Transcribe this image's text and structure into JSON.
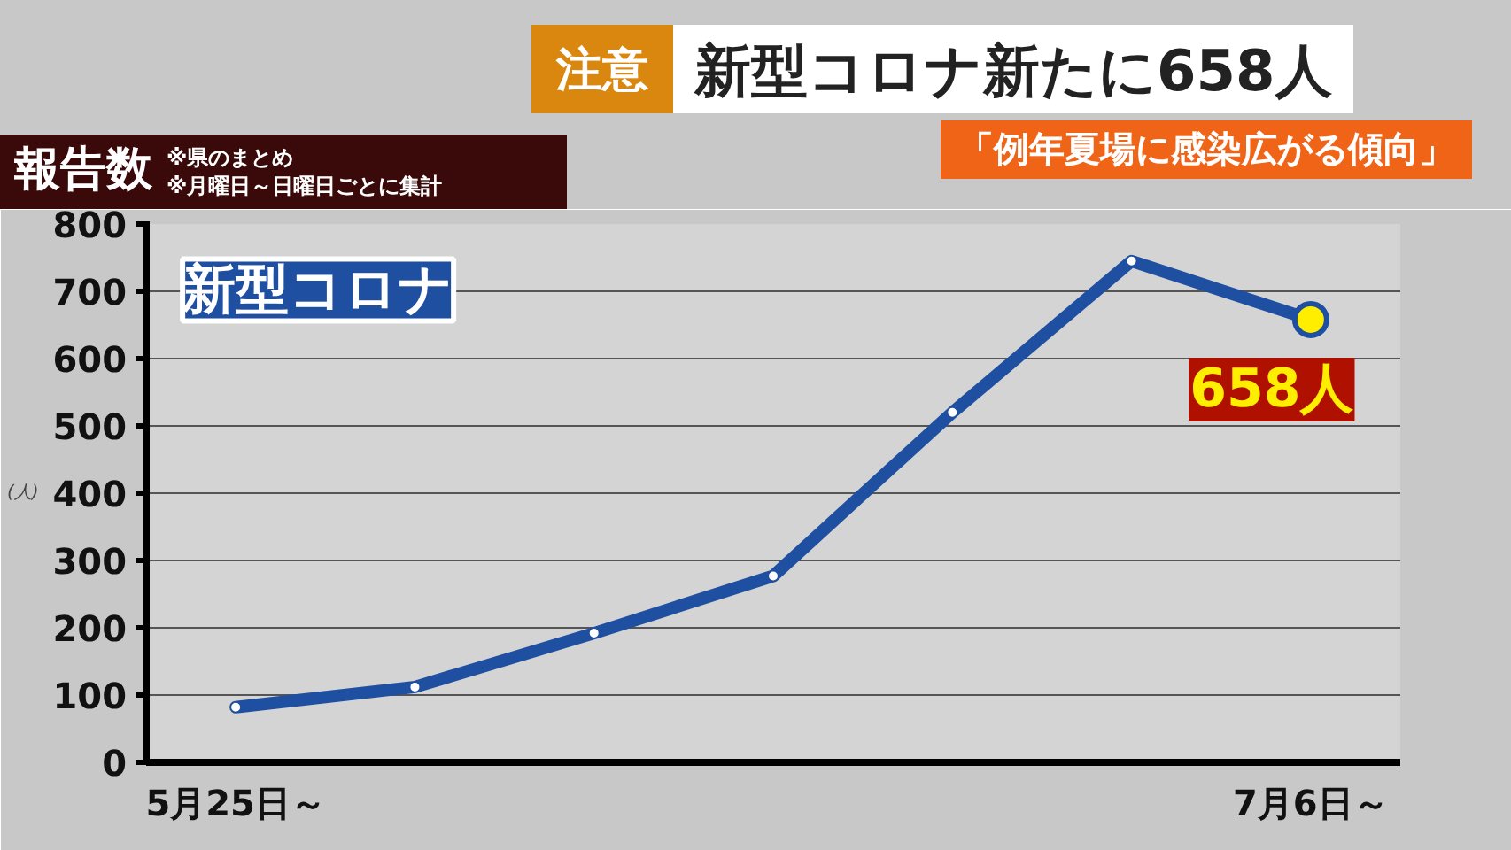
{
  "chart_data": {
    "type": "line",
    "title": "新型コロナ新たに658人",
    "subtitle": "「例年夏場に感染広がる傾向」",
    "annotations": [
      "注意",
      "報告数",
      "※県のまとめ",
      "※月曜日～日曜日ごとに集計"
    ],
    "ylabel": "(人)",
    "categories": [
      "5月25日～",
      null,
      null,
      null,
      null,
      null,
      "7月6日～"
    ],
    "series": [
      {
        "name": "新型コロナ",
        "color": "#1f4fa0",
        "values": [
          82,
          112,
          192,
          277,
          520,
          745,
          658
        ],
        "value_labels": [
          null,
          null,
          null,
          null,
          null,
          null,
          "658人"
        ]
      }
    ],
    "ylim": [
      0,
      800
    ],
    "yticks": [
      0,
      100,
      200,
      300,
      400,
      500,
      600,
      700,
      800
    ],
    "grid": "y",
    "marker": "circle",
    "line_style": "solid"
  }
}
